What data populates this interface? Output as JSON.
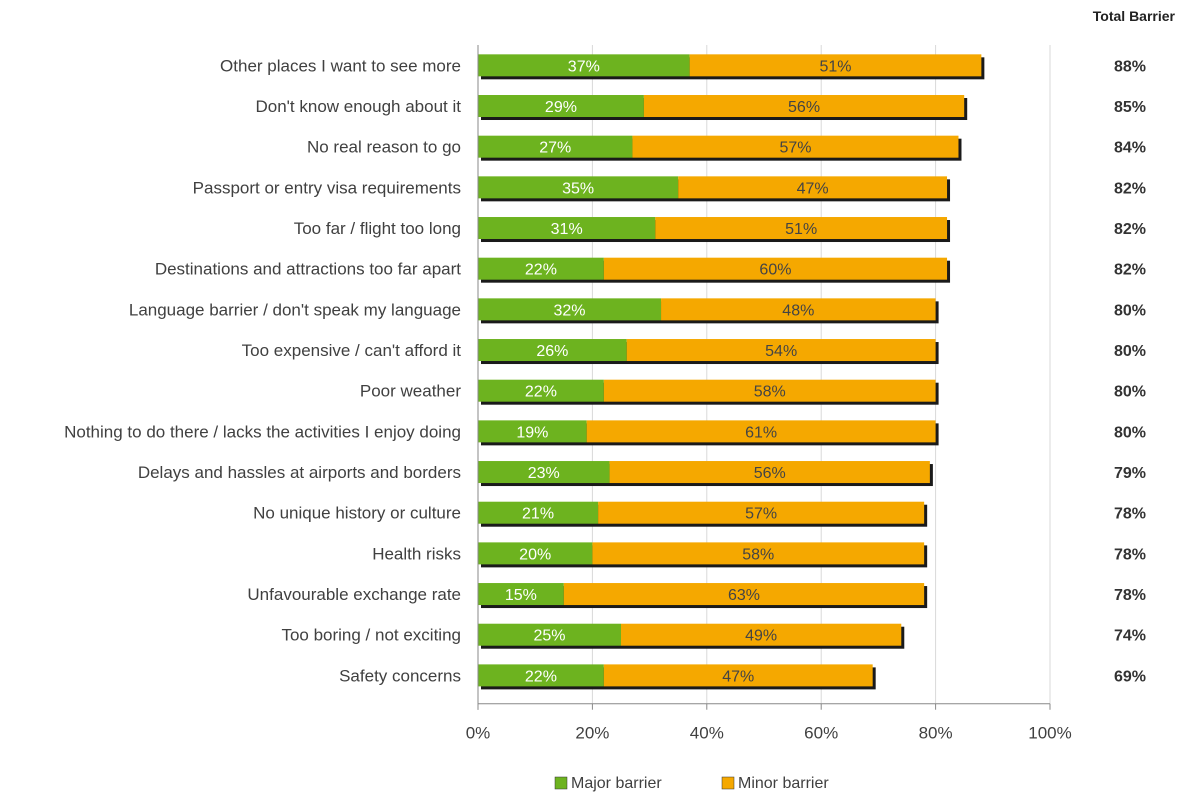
{
  "chart_data": {
    "type": "bar",
    "orientation": "horizontal",
    "stacked": true,
    "categories": [
      "Other places I want to see more",
      "Don't know enough about it",
      "No real reason to go",
      "Passport or entry visa requirements",
      "Too far / flight too long",
      "Destinations and attractions too far apart",
      "Language barrier / don't speak my language",
      "Too expensive / can't afford it",
      "Poor weather",
      "Nothing to do there / lacks the activities I enjoy doing",
      "Delays and hassles at airports and borders",
      "No unique history or culture",
      "Health risks",
      "Unfavourable exchange rate",
      "Too boring / not exciting",
      "Safety concerns"
    ],
    "series": [
      {
        "name": "Major barrier",
        "color": "#6db31f",
        "values": [
          37,
          29,
          27,
          35,
          31,
          22,
          32,
          26,
          22,
          19,
          23,
          21,
          20,
          15,
          25,
          22
        ],
        "labels": [
          "37%",
          "29%",
          "27%",
          "35%",
          "31%",
          "22%",
          "32%",
          "26%",
          "22%",
          "19%",
          "23%",
          "21%",
          "20%",
          "15%",
          "25%",
          "22%"
        ]
      },
      {
        "name": "Minor barrier",
        "color": "#f5a800",
        "values": [
          51,
          56,
          57,
          47,
          51,
          60,
          48,
          54,
          58,
          61,
          56,
          57,
          58,
          63,
          49,
          47
        ],
        "labels": [
          "51%",
          "56%",
          "57%",
          "47%",
          "51%",
          "60%",
          "48%",
          "54%",
          "58%",
          "61%",
          "56%",
          "57%",
          "58%",
          "63%",
          "49%",
          "47%"
        ]
      }
    ],
    "total_header": "Total Barrier",
    "totals": [
      "88%",
      "85%",
      "84%",
      "82%",
      "82%",
      "82%",
      "80%",
      "80%",
      "80%",
      "80%",
      "79%",
      "78%",
      "78%",
      "78%",
      "74%",
      "69%"
    ],
    "xlim": [
      0,
      100
    ],
    "x_ticks": [
      "0%",
      "20%",
      "40%",
      "60%",
      "80%",
      "100%"
    ],
    "grid": true,
    "legend_position": "bottom"
  }
}
